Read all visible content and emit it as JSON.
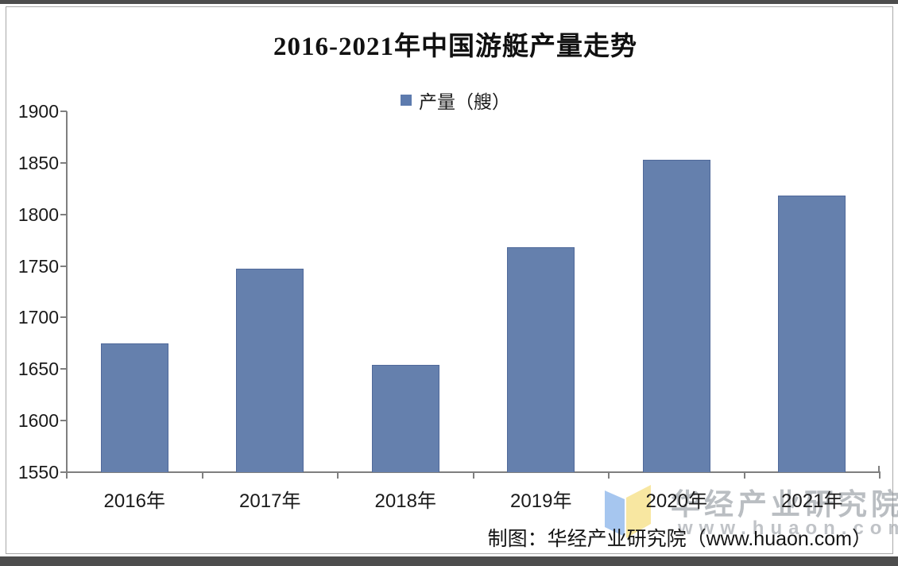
{
  "page": {
    "title": "2016-2021年中国游艇产量走势",
    "source_line": "制图：华经产业研究院（www.huaon.com）"
  },
  "legend": {
    "label": "产量（艘）",
    "swatch_color": "#5d7bae"
  },
  "watermark": {
    "org": "华经产业研究院",
    "url": "www.huaon.com",
    "logo_left_page_color": "#a6c6ef",
    "logo_right_page_color": "#f8e7a1"
  },
  "chart_data": {
    "type": "bar",
    "title": "2016-2021年中国游艇产量走势",
    "legend_entries": [
      "产量（艘）"
    ],
    "legend_position": "top",
    "categories": [
      "2016年",
      "2017年",
      "2018年",
      "2019年",
      "2020年",
      "2021年"
    ],
    "series": [
      {
        "name": "产量（艘）",
        "values": [
          1675,
          1747,
          1654,
          1768,
          1853,
          1818
        ]
      }
    ],
    "unit": "艘",
    "xlabel": "",
    "ylabel": "",
    "ylim": [
      1550,
      1900
    ],
    "yticks": [
      1550,
      1600,
      1650,
      1700,
      1750,
      1800,
      1850,
      1900
    ],
    "grid": false,
    "bar_color": "#6580ad",
    "bar_border_color": "#50699a"
  }
}
